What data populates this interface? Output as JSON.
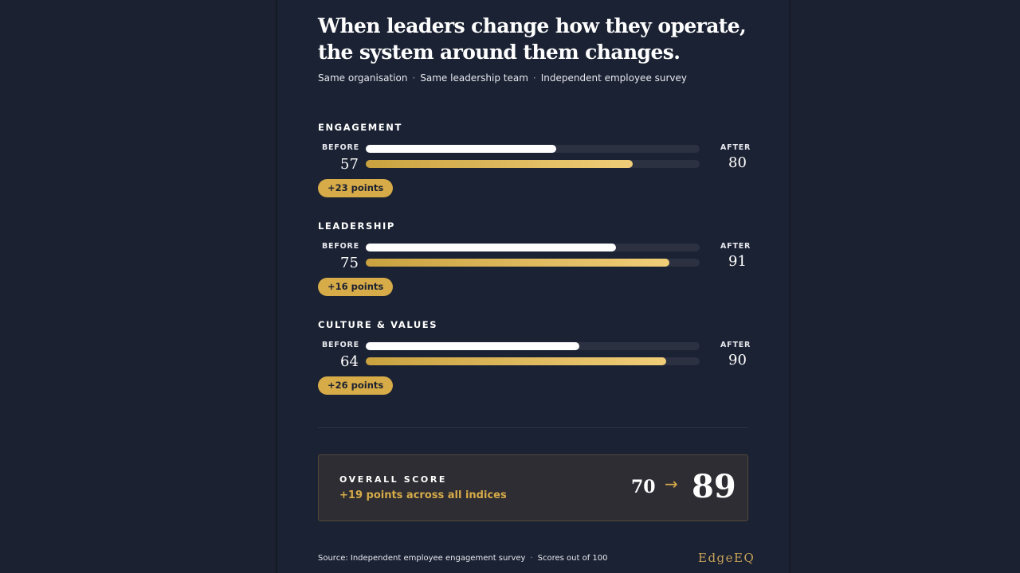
{
  "header": {
    "title_line1": "When leaders change how they operate,",
    "title_line2": "the system around them changes.",
    "subtitle": [
      "Same organisation",
      "Same leadership team",
      "Independent employee survey"
    ]
  },
  "chart_data": {
    "type": "bar",
    "orientation": "horizontal",
    "xlim": [
      0,
      100
    ],
    "before_label": "BEFORE",
    "after_label": "AFTER",
    "categories": [
      "ENGAGEMENT",
      "LEADERSHIP",
      "CULTURE & VALUES"
    ],
    "series": [
      {
        "name": "BEFORE",
        "values": [
          57,
          75,
          64
        ],
        "color": "#ffffff"
      },
      {
        "name": "AFTER",
        "values": [
          80,
          91,
          90
        ],
        "color": "#e0b95c"
      }
    ],
    "deltas": [
      "+23 points",
      "+16 points",
      "+26 points"
    ]
  },
  "overall": {
    "label": "OVERALL SCORE",
    "summary": "+19 points across all indices",
    "before": "70",
    "arrow": "→",
    "after": "89"
  },
  "footer": {
    "source": "Source: Independent employee engagement survey",
    "note": "Scores out of 100",
    "brand": "EdgeEQ"
  },
  "colors": {
    "background": "#1b2131",
    "accent": "#d6ab48"
  }
}
